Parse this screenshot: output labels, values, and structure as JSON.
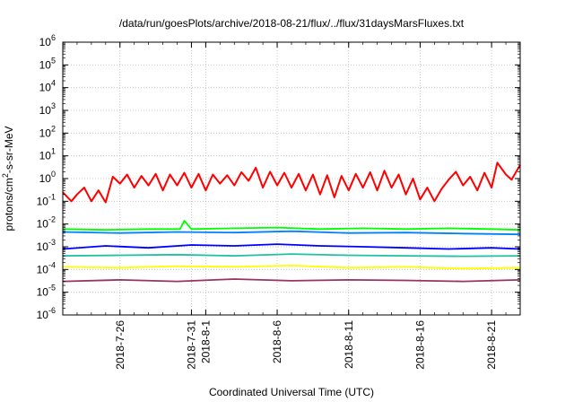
{
  "chart_data": {
    "type": "line",
    "title": "/data/run/goesPlots/archive/2018-08-21/flux/../flux/31daysMarsFluxes.txt",
    "xlabel": "Coordinated Universal Time (UTC)",
    "ylabel_parts": [
      "protons/cm",
      "2",
      "-s-sr-MeV"
    ],
    "y_scale": "log",
    "ylim_exponents": [
      -6,
      6
    ],
    "y_tick_labels": [
      {
        "base": "10",
        "exp": "-6"
      },
      {
        "base": "10",
        "exp": "-5"
      },
      {
        "base": "10",
        "exp": "-4"
      },
      {
        "base": "10",
        "exp": "-3"
      },
      {
        "base": "10",
        "exp": "-2"
      },
      {
        "base": "10",
        "exp": "-1"
      },
      {
        "base": "10",
        "exp": "0"
      },
      {
        "base": "10",
        "exp": "1"
      },
      {
        "base": "10",
        "exp": "2"
      },
      {
        "base": "10",
        "exp": "3"
      },
      {
        "base": "10",
        "exp": "4"
      },
      {
        "base": "10",
        "exp": "5"
      },
      {
        "base": "10",
        "exp": "6"
      }
    ],
    "xlim": [
      "2018-07-22",
      "2018-08-23"
    ],
    "x_tick_labels": [
      "2018-7-26",
      "2018-7-31",
      "2018-8-1",
      "2018-8-6",
      "2018-8-11",
      "2018-8-16",
      "2018-8-21"
    ],
    "x_tick_dates": [
      "2018-07-26",
      "2018-07-31",
      "2018-08-01",
      "2018-08-06",
      "2018-08-11",
      "2018-08-16",
      "2018-08-21"
    ],
    "grid": true,
    "legend": "none",
    "series": [
      {
        "color": "#ff0000",
        "values": [
          [
            "2018-07-22",
            0.25
          ],
          [
            "2018-07-22.6",
            0.1
          ],
          [
            "2018-07-23",
            0.2
          ],
          [
            "2018-07-23.5",
            0.4
          ],
          [
            "2018-07-24",
            0.1
          ],
          [
            "2018-07-24.5",
            0.3
          ],
          [
            "2018-07-25",
            0.09
          ],
          [
            "2018-07-25.5",
            1.2
          ],
          [
            "2018-07-26",
            0.6
          ],
          [
            "2018-07-26.5",
            1.5
          ],
          [
            "2018-07-27",
            0.4
          ],
          [
            "2018-07-27.5",
            1.3
          ],
          [
            "2018-07-28",
            0.5
          ],
          [
            "2018-07-28.5",
            1.6
          ],
          [
            "2018-07-29",
            0.3
          ],
          [
            "2018-07-29.5",
            1.5
          ],
          [
            "2018-07-30",
            0.5
          ],
          [
            "2018-07-30.5",
            1.8
          ],
          [
            "2018-07-31",
            0.4
          ],
          [
            "2018-07-31.5",
            1.6
          ],
          [
            "2018-08-01",
            0.3
          ],
          [
            "2018-08-01.5",
            1.5
          ],
          [
            "2018-08-02",
            0.6
          ],
          [
            "2018-08-02.5",
            1.4
          ],
          [
            "2018-08-03",
            0.5
          ],
          [
            "2018-08-03.5",
            1.9
          ],
          [
            "2018-08-04",
            0.8
          ],
          [
            "2018-08-04.5",
            3.0
          ],
          [
            "2018-08-05",
            0.4
          ],
          [
            "2018-08-05.5",
            2.0
          ],
          [
            "2018-08-06",
            0.5
          ],
          [
            "2018-08-06.5",
            1.8
          ],
          [
            "2018-08-07",
            0.4
          ],
          [
            "2018-08-07.5",
            1.6
          ],
          [
            "2018-08-08",
            0.3
          ],
          [
            "2018-08-08.5",
            1.5
          ],
          [
            "2018-08-09",
            0.2
          ],
          [
            "2018-08-09.5",
            1.4
          ],
          [
            "2018-08-10",
            0.15
          ],
          [
            "2018-08-10.5",
            1.3
          ],
          [
            "2018-08-11",
            0.3
          ],
          [
            "2018-08-11.5",
            1.6
          ],
          [
            "2018-08-12",
            0.4
          ],
          [
            "2018-08-12.5",
            1.9
          ],
          [
            "2018-08-13",
            0.3
          ],
          [
            "2018-08-13.5",
            2.2
          ],
          [
            "2018-08-14",
            0.4
          ],
          [
            "2018-08-14.5",
            1.5
          ],
          [
            "2018-08-15",
            0.2
          ],
          [
            "2018-08-15.5",
            1.0
          ],
          [
            "2018-08-16",
            0.12
          ],
          [
            "2018-08-16.5",
            0.4
          ],
          [
            "2018-08-17",
            0.1
          ],
          [
            "2018-08-17.5",
            0.35
          ],
          [
            "2018-08-18",
            0.9
          ],
          [
            "2018-08-18.5",
            2.0
          ],
          [
            "2018-08-19",
            0.5
          ],
          [
            "2018-08-19.5",
            1.2
          ],
          [
            "2018-08-20",
            0.3
          ],
          [
            "2018-08-20.5",
            1.8
          ],
          [
            "2018-08-21",
            0.4
          ],
          [
            "2018-08-21.4",
            5.0
          ],
          [
            "2018-08-22",
            1.5
          ],
          [
            "2018-08-22.4",
            0.9
          ],
          [
            "2018-08-23",
            4.0
          ]
        ]
      },
      {
        "color": "#00ff00",
        "values": [
          [
            "2018-07-22",
            0.006
          ],
          [
            "2018-07-25",
            0.0055
          ],
          [
            "2018-07-28",
            0.006
          ],
          [
            "2018-07-30.2",
            0.006
          ],
          [
            "2018-07-30.5",
            0.014
          ],
          [
            "2018-07-31",
            0.006
          ],
          [
            "2018-08-03",
            0.0065
          ],
          [
            "2018-08-06",
            0.007
          ],
          [
            "2018-08-09",
            0.006
          ],
          [
            "2018-08-12",
            0.0065
          ],
          [
            "2018-08-15",
            0.006
          ],
          [
            "2018-08-18",
            0.0065
          ],
          [
            "2018-08-21",
            0.006
          ],
          [
            "2018-08-23",
            0.0055
          ]
        ]
      },
      {
        "color": "#0080ff",
        "values": [
          [
            "2018-07-22",
            0.0045
          ],
          [
            "2018-07-26",
            0.004
          ],
          [
            "2018-07-30",
            0.0045
          ],
          [
            "2018-08-03",
            0.0042
          ],
          [
            "2018-08-07",
            0.0048
          ],
          [
            "2018-08-11",
            0.004
          ],
          [
            "2018-08-15",
            0.0042
          ],
          [
            "2018-08-19",
            0.0038
          ],
          [
            "2018-08-23",
            0.0035
          ]
        ]
      },
      {
        "color": "#0000ff",
        "values": [
          [
            "2018-07-22",
            0.0008
          ],
          [
            "2018-07-25",
            0.0011
          ],
          [
            "2018-07-28",
            0.0009
          ],
          [
            "2018-07-31",
            0.0012
          ],
          [
            "2018-08-03",
            0.0011
          ],
          [
            "2018-08-06",
            0.0013
          ],
          [
            "2018-08-09",
            0.0011
          ],
          [
            "2018-08-12",
            0.001
          ],
          [
            "2018-08-15",
            0.0009
          ],
          [
            "2018-08-18",
            0.0008
          ],
          [
            "2018-08-21",
            0.0009
          ],
          [
            "2018-08-23",
            0.0008
          ]
        ]
      },
      {
        "color": "#20c0a0",
        "values": [
          [
            "2018-07-22",
            0.0004
          ],
          [
            "2018-07-26",
            0.00042
          ],
          [
            "2018-07-30",
            0.00045
          ],
          [
            "2018-08-03",
            0.0004
          ],
          [
            "2018-08-07",
            0.00048
          ],
          [
            "2018-08-11",
            0.00042
          ],
          [
            "2018-08-15",
            0.0004
          ],
          [
            "2018-08-19",
            0.00038
          ],
          [
            "2018-08-23",
            0.0004
          ]
        ]
      },
      {
        "color": "#ffff00",
        "values": [
          [
            "2018-07-22",
            0.00013
          ],
          [
            "2018-07-26",
            0.00012
          ],
          [
            "2018-07-30",
            0.00014
          ],
          [
            "2018-08-03",
            0.00013
          ],
          [
            "2018-08-07",
            0.00015
          ],
          [
            "2018-08-11",
            0.00012
          ],
          [
            "2018-08-15",
            0.00013
          ],
          [
            "2018-08-19",
            0.00011
          ],
          [
            "2018-08-23",
            0.00012
          ]
        ]
      },
      {
        "color": "#993366",
        "values": [
          [
            "2018-07-22",
            3e-05
          ],
          [
            "2018-07-26",
            3.5e-05
          ],
          [
            "2018-07-30",
            3e-05
          ],
          [
            "2018-08-03",
            3.8e-05
          ],
          [
            "2018-08-07",
            3.2e-05
          ],
          [
            "2018-08-11",
            3.5e-05
          ],
          [
            "2018-08-15",
            3.3e-05
          ],
          [
            "2018-08-19",
            3e-05
          ],
          [
            "2018-08-23",
            3.5e-05
          ]
        ]
      }
    ]
  }
}
